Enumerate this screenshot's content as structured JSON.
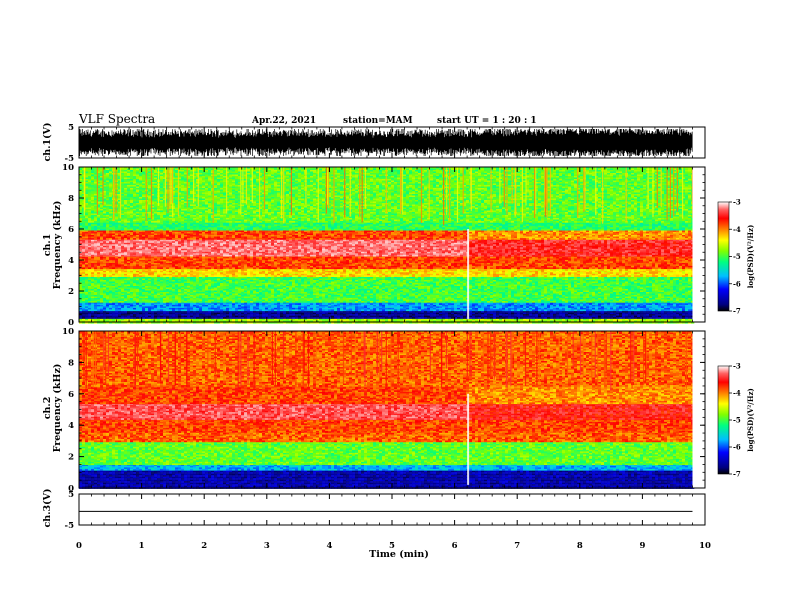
{
  "header": {
    "title": "VLF Spectra",
    "date": "Apr.22, 2021",
    "station": "station=MAM",
    "start_ut": "start  UT =   1 : 20 : 1"
  },
  "chart_data": {
    "type": "heatmap",
    "x": {
      "label": "Time  (min)",
      "lim": [
        0,
        10
      ],
      "ticks": [
        "0",
        "1",
        "2",
        "3",
        "4",
        "5",
        "6",
        "7",
        "8",
        "9",
        "10"
      ]
    },
    "panels": [
      {
        "name": "ch.1(V)",
        "kind": "waveform",
        "ylim": [
          -5,
          5
        ],
        "yticks": [
          "5",
          "-5"
        ],
        "data_end_min": 9.8
      },
      {
        "name": "ch.1",
        "kind": "spectrogram",
        "ylabel": "Frequency  (kHz)",
        "ylim": [
          0,
          10
        ],
        "yticks": [
          "0",
          "2",
          "4",
          "6",
          "8",
          "10"
        ],
        "data_end_min": 9.8,
        "disturbance_min": 6.2,
        "bands_khz": [
          {
            "from": 0.0,
            "to": 0.3,
            "level": -4.8
          },
          {
            "from": 0.3,
            "to": 0.8,
            "level": -6.8
          },
          {
            "from": 0.8,
            "to": 1.3,
            "level": -5.9
          },
          {
            "from": 1.3,
            "to": 3.0,
            "level": -5.1
          },
          {
            "from": 3.0,
            "to": 3.5,
            "level": -4.4
          },
          {
            "from": 3.5,
            "to": 4.3,
            "level": -3.9
          },
          {
            "from": 4.3,
            "to": 5.4,
            "level": -3.3
          },
          {
            "from": 5.4,
            "to": 6.0,
            "level": -3.9
          },
          {
            "from": 6.0,
            "to": 6.5,
            "level": -5.2
          },
          {
            "from": 6.5,
            "to": 10.0,
            "level": -5.0
          }
        ]
      },
      {
        "name": "ch.2",
        "kind": "spectrogram",
        "ylabel": "Frequency  (kHz)",
        "ylim": [
          0,
          10
        ],
        "yticks": [
          "0",
          "2",
          "4",
          "6",
          "8",
          "10"
        ],
        "data_end_min": 9.8,
        "disturbance_min": 6.2,
        "bands_khz": [
          {
            "from": 0.0,
            "to": 1.2,
            "level": -6.7
          },
          {
            "from": 1.2,
            "to": 1.5,
            "level": -5.8
          },
          {
            "from": 1.5,
            "to": 3.0,
            "level": -5.0
          },
          {
            "from": 3.0,
            "to": 3.6,
            "level": -4.0
          },
          {
            "from": 3.6,
            "to": 4.4,
            "level": -3.9
          },
          {
            "from": 4.4,
            "to": 5.4,
            "level": -3.4
          },
          {
            "from": 5.4,
            "to": 6.5,
            "level": -3.9
          },
          {
            "from": 6.5,
            "to": 10.0,
            "level": -4.0
          }
        ]
      },
      {
        "name": "ch.3(V)",
        "kind": "waveform",
        "ylim": [
          -5,
          5
        ],
        "yticks": [
          "5",
          "-5"
        ],
        "data_end_min": 9.8,
        "flat_level": -0.6
      }
    ],
    "colorbar": {
      "label": "log(PSD)(V²/Hz)",
      "range": [
        -7,
        -3
      ],
      "ticks": [
        "-3",
        "-4",
        "-5",
        "-6",
        "-7"
      ],
      "colors": [
        "#000080",
        "#0000ff",
        "#00bfff",
        "#00ff80",
        "#80ff00",
        "#ffff00",
        "#ff8000",
        "#ff0000",
        "#ffffff"
      ]
    }
  }
}
